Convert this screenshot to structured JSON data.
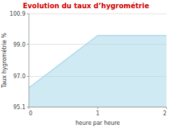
{
  "chart_data": {
    "type": "area",
    "title": "Evolution du taux d’hygrométrie",
    "xlabel": "heure par heure",
    "ylabel": "Taux hygrométrie %",
    "x": [
      0,
      1,
      2
    ],
    "values": [
      96.3,
      99.55,
      99.55
    ],
    "color": "#a8d8ea",
    "xlim": [
      0,
      2
    ],
    "ylim": [
      95.1,
      100.9
    ],
    "xticks": [
      0,
      1,
      2
    ],
    "yticks": [
      95.1,
      {
        "value": 97.0,
        "label": "97.0"
      },
      {
        "value": 99.0,
        "label": "99.0"
      },
      100.9
    ],
    "grid": true
  }
}
